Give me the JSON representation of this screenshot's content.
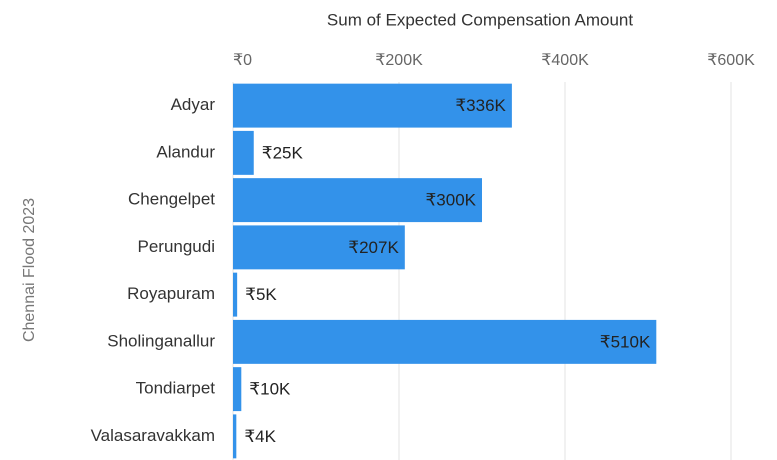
{
  "chart_data": {
    "type": "bar",
    "orientation": "horizontal",
    "x_label": "Sum of Expected Compensation Amount",
    "y_label": "Chennai Flood 2023",
    "categories": [
      "Adyar",
      "Alandur",
      "Chengelpet",
      "Perungudi",
      "Royapuram",
      "Sholinganallur",
      "Tondiarpet",
      "Valasaravakkam"
    ],
    "values": [
      336000,
      25000,
      300000,
      207000,
      5000,
      510000,
      10000,
      4000
    ],
    "value_labels": [
      "₹336K",
      "₹25K",
      "₹300K",
      "₹207K",
      "₹5K",
      "₹510K",
      "₹10K",
      "₹4K"
    ],
    "color": "#3392ea",
    "xlim": [
      0,
      600000
    ],
    "xticks": [
      {
        "value": 0,
        "label": "₹0"
      },
      {
        "value": 200000,
        "label": "₹200K"
      },
      {
        "value": 400000,
        "label": "₹400K"
      },
      {
        "value": 600000,
        "label": "₹600K"
      }
    ],
    "grid": true
  }
}
